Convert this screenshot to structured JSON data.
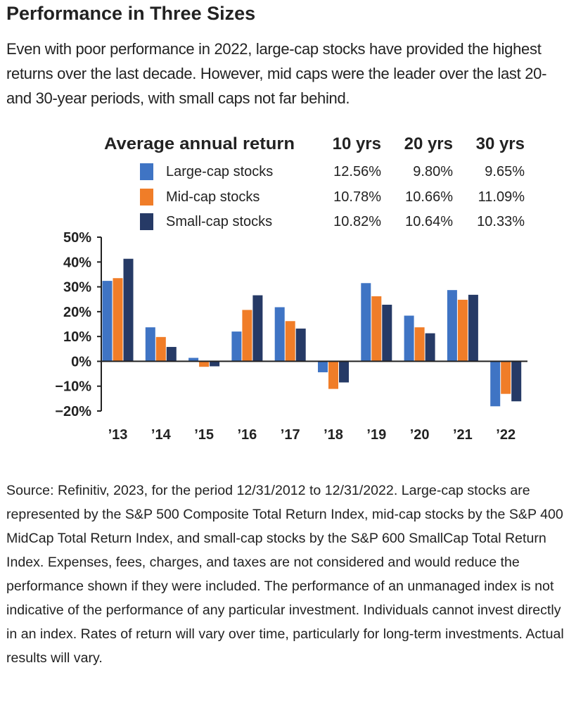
{
  "page": {
    "title": "Performance in Three Sizes",
    "intro": "Even with poor performance in 2022, large-cap stocks have provided the highest returns over the last decade. However, mid caps were the leader over the last 20- and 30-year periods, with small caps not far behind.",
    "source": "Source: Refinitiv, 2023, for the period 12/31/2012 to 12/31/2022. Large-cap stocks are represented by the S&P 500 Composite Total Return Index, mid-cap stocks by the S&P 400 MidCap Total Return Index, and small-cap stocks by the S&P 600 SmallCap Total Return Index. Expenses, fees, charges, and taxes are not considered and would reduce the performance shown if they were included. The performance of an unmanaged index is not indicative of the performance of any particular investment. Individuals cannot invest directly in an index. Rates of return will vary over time, particularly for long-term investments. Actual results will vary."
  },
  "chart_data": {
    "type": "bar",
    "categories": [
      "’13",
      "’14",
      "’15",
      "’16",
      "’17",
      "’18",
      "’19",
      "’20",
      "’21",
      "’22"
    ],
    "series": [
      {
        "name": "Large-cap stocks",
        "color": "#3f74c4",
        "values": [
          32.4,
          13.7,
          1.4,
          12.0,
          21.8,
          -4.4,
          31.5,
          18.4,
          28.7,
          -18.1
        ]
      },
      {
        "name": "Mid-cap stocks",
        "color": "#f07d28",
        "values": [
          33.5,
          9.8,
          -2.2,
          20.7,
          16.2,
          -11.1,
          26.2,
          13.7,
          24.8,
          -13.1
        ]
      },
      {
        "name": "Small-cap stocks",
        "color": "#263a66",
        "values": [
          41.3,
          5.8,
          -2.0,
          26.6,
          13.2,
          -8.5,
          22.8,
          11.3,
          26.8,
          -16.1
        ]
      }
    ],
    "y_ticks": [
      "50%",
      "40%",
      "30%",
      "20%",
      "10%",
      "0%",
      "−10%",
      "−20%"
    ],
    "ylim": [
      -20,
      50
    ],
    "table": {
      "header_label": "Average annual return",
      "columns": [
        "10 yrs",
        "20 yrs",
        "30 yrs"
      ],
      "rows": [
        [
          "12.56%",
          "9.80%",
          "9.65%"
        ],
        [
          "10.78%",
          "10.66%",
          "11.09%"
        ],
        [
          "10.82%",
          "10.64%",
          "10.33%"
        ]
      ]
    }
  }
}
